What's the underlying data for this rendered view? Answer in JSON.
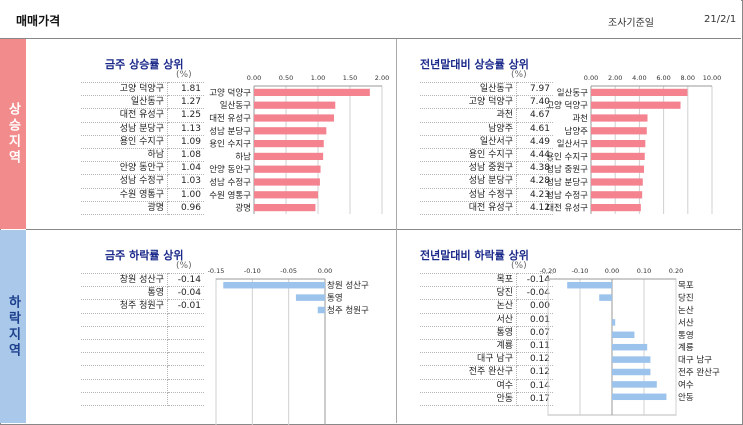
{
  "header": {
    "title": "매매가격",
    "survey_label": "조사기준일",
    "survey_date": "21/2/1"
  },
  "side": {
    "up": "상승지역",
    "down": "하락지역"
  },
  "colors": {
    "up_bar": "#f4828f",
    "down_bar": "#9cc3ec",
    "up_side": "#f28b8b",
    "down_side": "#a9c8ea"
  },
  "chart_data": [
    {
      "id": "weekly-up",
      "type": "bar",
      "orientation": "horizontal",
      "title": "금주 상승률 상위",
      "unit": "(%)",
      "categories": [
        "고양 덕양구",
        "일산동구",
        "대전 유성구",
        "성남 분당구",
        "용인 수지구",
        "하남",
        "안양 동안구",
        "성남 수정구",
        "수원 영통구",
        "광명"
      ],
      "values": [
        1.81,
        1.27,
        1.25,
        1.13,
        1.09,
        1.08,
        1.04,
        1.03,
        1.0,
        0.96
      ],
      "value_labels": [
        "1.81",
        "1.27",
        "1.25",
        "1.13",
        "1.09",
        "1.08",
        "1.04",
        "1.03",
        "1.00",
        "0.96"
      ],
      "ticks": [
        "0.00",
        "0.50",
        "1.00",
        "1.50",
        "2.00"
      ],
      "xlim": [
        0,
        2
      ],
      "grid": true
    },
    {
      "id": "yearly-up",
      "type": "bar",
      "orientation": "horizontal",
      "title": "전년말대비 상승률 상위",
      "unit": "(%)",
      "categories": [
        "일산동구",
        "고양 덕양구",
        "과천",
        "남양주",
        "일산서구",
        "용인 수지구",
        "성남 중원구",
        "성남 분당구",
        "성남 수정구",
        "대전 유성구"
      ],
      "values": [
        7.97,
        7.4,
        4.67,
        4.61,
        4.49,
        4.44,
        4.38,
        4.28,
        4.23,
        4.12
      ],
      "value_labels": [
        "7.97",
        "7.40",
        "4.67",
        "4.61",
        "4.49",
        "4.44",
        "4.38",
        "4.28",
        "4.23",
        "4.12"
      ],
      "ticks": [
        "0.00",
        "2.00",
        "4.00",
        "6.00",
        "8.00",
        "10.00"
      ],
      "xlim": [
        0,
        10
      ],
      "grid": true
    },
    {
      "id": "weekly-down",
      "type": "bar",
      "orientation": "horizontal",
      "title": "금주 하락률 상위",
      "unit": "(%)",
      "categories": [
        "창원 성산구",
        "통영",
        "청주 청원구"
      ],
      "values": [
        -0.14,
        -0.04,
        -0.01
      ],
      "value_labels": [
        "-0.14",
        "-0.04",
        "-0.01"
      ],
      "ticks": [
        "-0.15",
        "-0.10",
        "-0.05",
        "0.00"
      ],
      "xlim": [
        -0.15,
        0
      ],
      "rows": 10,
      "grid": true
    },
    {
      "id": "yearly-down",
      "type": "bar",
      "orientation": "horizontal",
      "title": "전년말대비 하락률 상위",
      "unit": "(%)",
      "categories": [
        "목포",
        "당진",
        "논산",
        "서산",
        "통영",
        "계룡",
        "대구 남구",
        "전주 완산구",
        "여수",
        "안동"
      ],
      "values": [
        -0.14,
        -0.04,
        0.0,
        0.01,
        0.07,
        0.11,
        0.12,
        0.12,
        0.14,
        0.17
      ],
      "value_labels": [
        "-0.14",
        "-0.04",
        "0.00",
        "0.01",
        "0.07",
        "0.11",
        "0.12",
        "0.12",
        "0.14",
        "0.17"
      ],
      "ticks": [
        "-0.20",
        "-0.10",
        "0.00",
        "0.10",
        "0.20"
      ],
      "xlim": [
        -0.2,
        0.2
      ],
      "grid": true
    }
  ]
}
